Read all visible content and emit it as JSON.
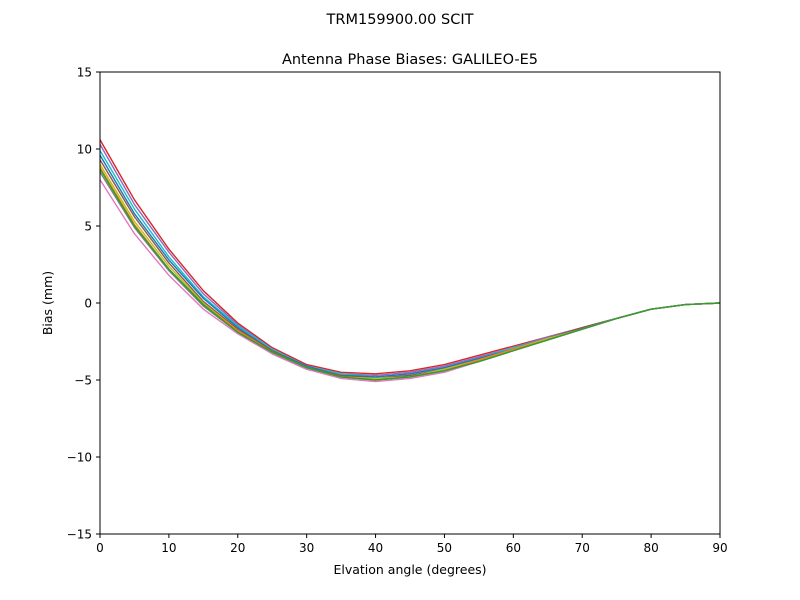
{
  "chart_data": {
    "type": "line",
    "suptitle": "TRM159900.00    SCIT",
    "title": "Antenna Phase Biases: GALILEO-E5",
    "xlabel": "Elvation angle (degrees)",
    "ylabel": "Bias (mm)",
    "xlim": [
      0,
      90
    ],
    "ylim": [
      -15,
      15
    ],
    "xticks": [
      0,
      10,
      20,
      30,
      40,
      50,
      60,
      70,
      80,
      90
    ],
    "yticks": [
      -15,
      -10,
      -5,
      0,
      5,
      10,
      15
    ],
    "ytick_labels": [
      "−15",
      "−10",
      "−5",
      "0",
      "5",
      "10",
      "15"
    ],
    "grid": false,
    "legend": "none",
    "x": [
      0,
      5,
      10,
      15,
      20,
      25,
      30,
      35,
      40,
      45,
      50,
      55,
      60,
      65,
      70,
      75,
      80,
      85,
      90
    ],
    "series": [
      {
        "color": "#d62728",
        "values": [
          10.6,
          6.7,
          3.5,
          0.8,
          -1.3,
          -2.9,
          -4.0,
          -4.5,
          -4.6,
          -4.4,
          -4.0,
          -3.4,
          -2.8,
          -2.2,
          -1.6,
          -1.0,
          -0.4,
          -0.1,
          0.0
        ]
      },
      {
        "color": "#9467bd",
        "values": [
          10.3,
          6.4,
          3.3,
          0.6,
          -1.4,
          -3.0,
          -4.1,
          -4.6,
          -4.7,
          -4.5,
          -4.1,
          -3.5,
          -2.9,
          -2.2,
          -1.6,
          -1.0,
          -0.4,
          -0.1,
          0.0
        ]
      },
      {
        "color": "#17becf",
        "values": [
          9.9,
          6.1,
          3.0,
          0.4,
          -1.5,
          -3.0,
          -4.1,
          -4.6,
          -4.8,
          -4.6,
          -4.2,
          -3.6,
          -2.9,
          -2.3,
          -1.6,
          -1.0,
          -0.4,
          -0.1,
          0.0
        ]
      },
      {
        "color": "#1f77b4",
        "values": [
          9.6,
          5.8,
          2.8,
          0.3,
          -1.6,
          -3.1,
          -4.1,
          -4.7,
          -4.8,
          -4.6,
          -4.2,
          -3.6,
          -3.0,
          -2.3,
          -1.6,
          -1.0,
          -0.4,
          -0.1,
          0.0
        ]
      },
      {
        "color": "#8c564b",
        "values": [
          9.3,
          5.6,
          2.6,
          0.1,
          -1.7,
          -3.1,
          -4.2,
          -4.7,
          -4.9,
          -4.7,
          -4.3,
          -3.7,
          -3.0,
          -2.3,
          -1.6,
          -1.0,
          -0.4,
          -0.1,
          0.0
        ]
      },
      {
        "color": "#bcbd22",
        "values": [
          9.0,
          5.3,
          2.4,
          0.0,
          -1.8,
          -3.2,
          -4.2,
          -4.8,
          -4.9,
          -4.8,
          -4.3,
          -3.7,
          -3.0,
          -2.3,
          -1.7,
          -1.0,
          -0.4,
          -0.1,
          0.0
        ]
      },
      {
        "color": "#ff7f0e",
        "values": [
          8.8,
          5.1,
          2.2,
          -0.1,
          -1.8,
          -3.2,
          -4.2,
          -4.8,
          -5.0,
          -4.8,
          -4.4,
          -3.7,
          -3.0,
          -2.4,
          -1.7,
          -1.0,
          -0.4,
          -0.1,
          0.0
        ]
      },
      {
        "color": "#7f7f7f",
        "values": [
          8.5,
          4.9,
          2.1,
          -0.2,
          -1.9,
          -3.3,
          -4.3,
          -4.8,
          -5.0,
          -4.8,
          -4.4,
          -3.8,
          -3.1,
          -2.4,
          -1.7,
          -1.0,
          -0.4,
          -0.1,
          0.0
        ]
      },
      {
        "color": "#e377c2",
        "values": [
          8.0,
          4.5,
          1.8,
          -0.4,
          -2.0,
          -3.3,
          -4.3,
          -4.9,
          -5.1,
          -4.9,
          -4.5,
          -3.8,
          -3.1,
          -2.4,
          -1.7,
          -1.0,
          -0.4,
          -0.1,
          0.0
        ]
      },
      {
        "color": "#2ca02c",
        "values": [
          8.7,
          5.0,
          2.2,
          -0.1,
          -1.9,
          -3.2,
          -4.2,
          -4.8,
          -5.0,
          -4.8,
          -4.4,
          -3.8,
          -3.1,
          -2.4,
          -1.7,
          -1.0,
          -0.4,
          -0.1,
          0.0
        ]
      }
    ]
  }
}
